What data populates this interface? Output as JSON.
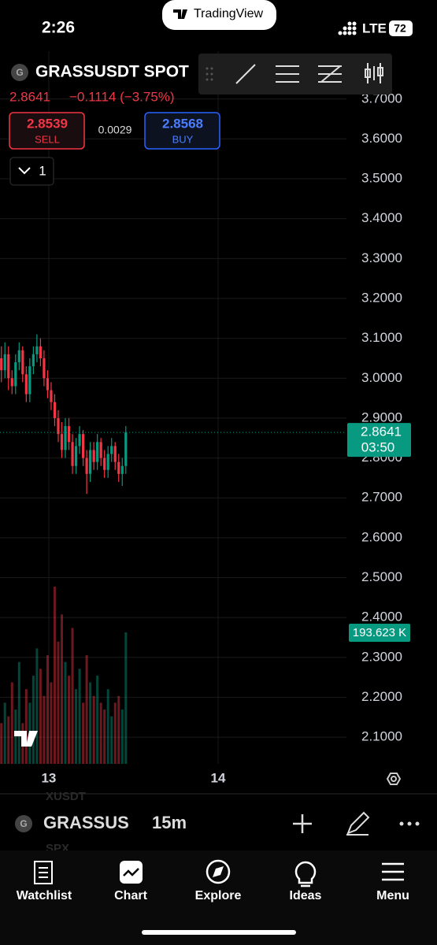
{
  "status_bar": {
    "time": "2:26",
    "network": "LTE",
    "battery": "72",
    "app_banner": "TradingView"
  },
  "header": {
    "symbol": "GRASSUSDT SPOT",
    "last": "2.8641",
    "change": "−0.1114 (−3.75%)",
    "sell_price": "2.8539",
    "sell_label": "SELL",
    "spread": "0.0029",
    "buy_price": "2.8568",
    "buy_label": "BUY",
    "interval_count": "1"
  },
  "chart_data": {
    "type": "candlestick",
    "x": [
      12.72,
      12.741,
      12.762,
      12.783,
      12.804,
      12.825,
      12.846,
      12.867,
      12.888,
      12.909,
      12.93,
      12.951,
      12.972,
      12.993,
      13.014,
      13.035,
      13.056,
      13.077,
      13.098,
      13.119,
      13.14,
      13.161,
      13.182,
      13.203,
      13.224,
      13.245,
      13.266,
      13.287,
      13.308,
      13.329,
      13.35,
      13.371,
      13.392,
      13.413,
      13.434,
      13.455
    ],
    "open": [
      3.05,
      3.02,
      3.06,
      3.0,
      2.98,
      3.04,
      3.07,
      3.01,
      2.96,
      3.03,
      3.06,
      3.08,
      3.05,
      3.0,
      2.97,
      2.94,
      2.9,
      2.86,
      2.82,
      2.88,
      2.84,
      2.78,
      2.83,
      2.86,
      2.8,
      2.76,
      2.82,
      2.79,
      2.84,
      2.8,
      2.77,
      2.81,
      2.83,
      2.79,
      2.76,
      2.78
    ],
    "high": [
      3.08,
      3.09,
      3.08,
      3.02,
      3.06,
      3.09,
      3.08,
      3.03,
      3.05,
      3.08,
      3.11,
      3.1,
      3.07,
      3.02,
      2.99,
      2.96,
      2.92,
      2.89,
      2.9,
      2.9,
      2.86,
      2.85,
      2.88,
      2.87,
      2.82,
      2.84,
      2.84,
      2.86,
      2.85,
      2.82,
      2.83,
      2.85,
      2.84,
      2.81,
      2.8,
      2.88
    ],
    "low": [
      2.99,
      3.0,
      2.97,
      2.96,
      2.96,
      3.02,
      2.99,
      2.94,
      2.94,
      3.01,
      3.04,
      3.03,
      2.98,
      2.95,
      2.92,
      2.88,
      2.84,
      2.8,
      2.8,
      2.82,
      2.76,
      2.76,
      2.81,
      2.78,
      2.71,
      2.74,
      2.77,
      2.77,
      2.78,
      2.75,
      2.75,
      2.79,
      2.77,
      2.74,
      2.73,
      2.76
    ],
    "close": [
      3.02,
      3.06,
      3.0,
      2.98,
      3.04,
      3.07,
      3.01,
      2.96,
      3.03,
      3.06,
      3.08,
      3.05,
      3.0,
      2.97,
      2.94,
      2.9,
      2.86,
      2.82,
      2.88,
      2.84,
      2.78,
      2.83,
      2.86,
      2.8,
      2.76,
      2.82,
      2.79,
      2.84,
      2.8,
      2.77,
      2.81,
      2.83,
      2.79,
      2.76,
      2.78,
      2.8641
    ],
    "volume": {
      "axis": "y2",
      "values": [
        60000,
        90000,
        70000,
        120000,
        80000,
        150000,
        60000,
        110000,
        90000,
        130000,
        170000,
        140000,
        100000,
        160000,
        120000,
        261000,
        180000,
        220000,
        150000,
        130000,
        200000,
        110000,
        140000,
        90000,
        160000,
        120000,
        100000,
        130000,
        90000,
        80000,
        110000,
        70000,
        90000,
        100000,
        80000,
        193623
      ],
      "value_labels": [
        null,
        null,
        null,
        null,
        null,
        null,
        null,
        null,
        null,
        null,
        null,
        null,
        null,
        null,
        null,
        null,
        null,
        null,
        null,
        null,
        null,
        null,
        null,
        null,
        null,
        null,
        null,
        null,
        null,
        null,
        null,
        null,
        null,
        null,
        null,
        "193.623 K"
      ]
    },
    "countdown": "03:50",
    "up_color": "#089981",
    "down_color": "#f23645",
    "xlim": [
      12.712,
      14.758
    ],
    "xticks": [
      13,
      14
    ],
    "ylim": [
      2.033,
      3.82
    ],
    "yticks": [
      {
        "value": 2.1,
        "label": "2.1000"
      },
      {
        "value": 2.2,
        "label": "2.2000"
      },
      {
        "value": 2.3,
        "label": "2.3000"
      },
      {
        "value": 2.4,
        "label": "2.4000"
      },
      {
        "value": 2.5,
        "label": "2.5000"
      },
      {
        "value": 2.6,
        "label": "2.6000"
      },
      {
        "value": 2.7,
        "label": "2.7000"
      },
      {
        "value": 2.8,
        "label": "2.8000"
      },
      {
        "value": 2.9,
        "label": "2.9000"
      },
      {
        "value": 3.0,
        "label": "3.0000"
      },
      {
        "value": 3.1,
        "label": "3.1000"
      },
      {
        "value": 3.2,
        "label": "3.2000"
      },
      {
        "value": 3.3,
        "label": "3.3000"
      },
      {
        "value": 3.4,
        "label": "3.4000"
      },
      {
        "value": 3.5,
        "label": "3.5000"
      },
      {
        "value": 3.6,
        "label": "3.6000"
      },
      {
        "value": 3.7,
        "label": "3.7000"
      }
    ],
    "y2lim": [
      0,
      313000
    ],
    "grid": true
  },
  "symbol_bar": {
    "symbol": "GRASSUS",
    "interval": "15m",
    "behind_above": "XUSDT",
    "behind_below": "SPX"
  },
  "nav": [
    "Watchlist",
    "Chart",
    "Explore",
    "Ideas",
    "Menu"
  ]
}
